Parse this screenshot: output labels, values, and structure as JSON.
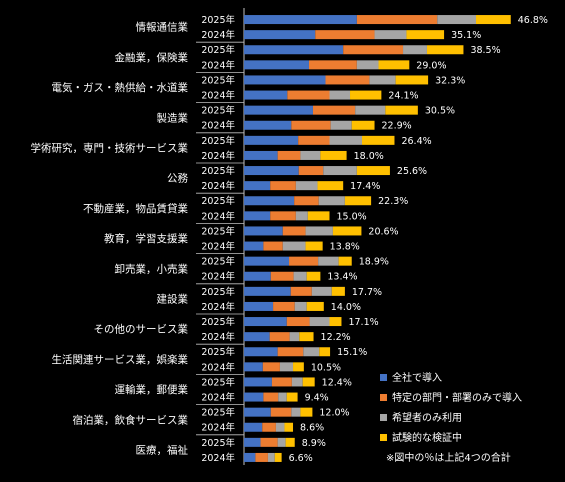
{
  "chart_data": {
    "type": "bar",
    "orientation": "horizontal",
    "stacked": true,
    "title": "",
    "xlabel": "",
    "ylabel": "",
    "xlim": [
      0,
      50
    ],
    "grid": false,
    "legend_position": "bottom-right",
    "note": "※図中の％は上記4つの合計",
    "years": [
      "2025年",
      "2024年"
    ],
    "series": [
      {
        "name": "全社で導入",
        "color": "#4472c4"
      },
      {
        "name": "特定の部門・部署のみで導入",
        "color": "#ed7d31"
      },
      {
        "name": "希望者のみ利用",
        "color": "#a5a5a5"
      },
      {
        "name": "試験的な検証中",
        "color": "#ffc000"
      }
    ],
    "categories": [
      {
        "name": "情報通信業",
        "y2025": {
          "values": [
            19.8,
            14.1,
            6.8,
            6.1
          ],
          "total": "46.8%"
        },
        "y2024": {
          "values": [
            12.5,
            10.4,
            5.6,
            6.6
          ],
          "total": "35.1%"
        }
      },
      {
        "name": "金融業，保険業",
        "y2025": {
          "values": [
            17.4,
            10.5,
            4.2,
            6.4
          ],
          "total": "38.5%"
        },
        "y2024": {
          "values": [
            11.4,
            8.4,
            3.8,
            5.4
          ],
          "total": "29.0%"
        }
      },
      {
        "name": "電気・ガス・熱供給・水道業",
        "y2025": {
          "values": [
            14.3,
            7.7,
            4.6,
            5.7
          ],
          "total": "32.3%"
        },
        "y2024": {
          "values": [
            7.6,
            7.4,
            3.6,
            5.5
          ],
          "total": "24.1%"
        }
      },
      {
        "name": "製造業",
        "y2025": {
          "values": [
            12.1,
            7.4,
            5.3,
            5.7
          ],
          "total": "30.5%"
        },
        "y2024": {
          "values": [
            8.3,
            6.9,
            3.7,
            4.0
          ],
          "total": "22.9%"
        }
      },
      {
        "name": "学術研究，専門・技術サービス業",
        "y2025": {
          "values": [
            9.5,
            5.5,
            5.7,
            5.7
          ],
          "total": "26.4%"
        },
        "y2024": {
          "values": [
            5.9,
            4.0,
            3.5,
            4.6
          ],
          "total": "18.0%"
        }
      },
      {
        "name": "公務",
        "y2025": {
          "values": [
            9.6,
            4.3,
            5.9,
            5.8
          ],
          "total": "25.6%"
        },
        "y2024": {
          "values": [
            4.6,
            4.5,
            3.8,
            4.5
          ],
          "total": "17.4%"
        }
      },
      {
        "name": "不動産業，物品賃貸業",
        "y2025": {
          "values": [
            8.8,
            4.3,
            4.6,
            4.6
          ],
          "total": "22.3%"
        },
        "y2024": {
          "values": [
            4.6,
            4.5,
            2.1,
            3.8
          ],
          "total": "15.0%"
        }
      },
      {
        "name": "教育，学習支援業",
        "y2025": {
          "values": [
            6.8,
            4.0,
            4.8,
            5.0
          ],
          "total": "20.6%"
        },
        "y2024": {
          "values": [
            3.4,
            3.4,
            4.0,
            3.0
          ],
          "total": "13.8%"
        }
      },
      {
        "name": "卸売業，小売業",
        "y2025": {
          "values": [
            7.9,
            5.1,
            3.6,
            2.3
          ],
          "total": "18.9%"
        },
        "y2024": {
          "values": [
            4.7,
            4.0,
            2.3,
            2.4
          ],
          "total": "13.4%"
        }
      },
      {
        "name": "建設業",
        "y2025": {
          "values": [
            8.2,
            3.7,
            3.5,
            2.3
          ],
          "total": "17.7%"
        },
        "y2024": {
          "values": [
            5.1,
            3.8,
            2.1,
            3.0
          ],
          "total": "14.0%"
        }
      },
      {
        "name": "その他のサービス業",
        "y2025": {
          "values": [
            7.5,
            4.0,
            3.5,
            2.1
          ],
          "total": "17.1%"
        },
        "y2024": {
          "values": [
            4.5,
            3.5,
            1.7,
            2.5
          ],
          "total": "12.2%"
        }
      },
      {
        "name": "生活関連サービス業，娯楽業",
        "y2025": {
          "values": [
            5.9,
            4.5,
            2.8,
            1.9
          ],
          "total": "15.1%"
        },
        "y2024": {
          "values": [
            3.3,
            3.0,
            2.3,
            1.9
          ],
          "total": "10.5%"
        }
      },
      {
        "name": "運輸業，郵便業",
        "y2025": {
          "values": [
            4.9,
            3.5,
            1.9,
            2.1
          ],
          "total": "12.4%"
        },
        "y2024": {
          "values": [
            3.4,
            2.6,
            1.5,
            1.9
          ],
          "total": "9.4%"
        }
      },
      {
        "name": "宿泊業，飲食サービス業",
        "y2025": {
          "values": [
            4.7,
            3.6,
            1.6,
            2.1
          ],
          "total": "12.0%"
        },
        "y2024": {
          "values": [
            3.2,
            2.4,
            1.5,
            1.5
          ],
          "total": "8.6%"
        }
      },
      {
        "name": "医療，福祉",
        "y2025": {
          "values": [
            2.9,
            3.0,
            1.4,
            1.6
          ],
          "total": "8.9%"
        },
        "y2024": {
          "values": [
            2.0,
            2.2,
            1.2,
            1.2
          ],
          "total": "6.6%"
        }
      }
    ]
  }
}
